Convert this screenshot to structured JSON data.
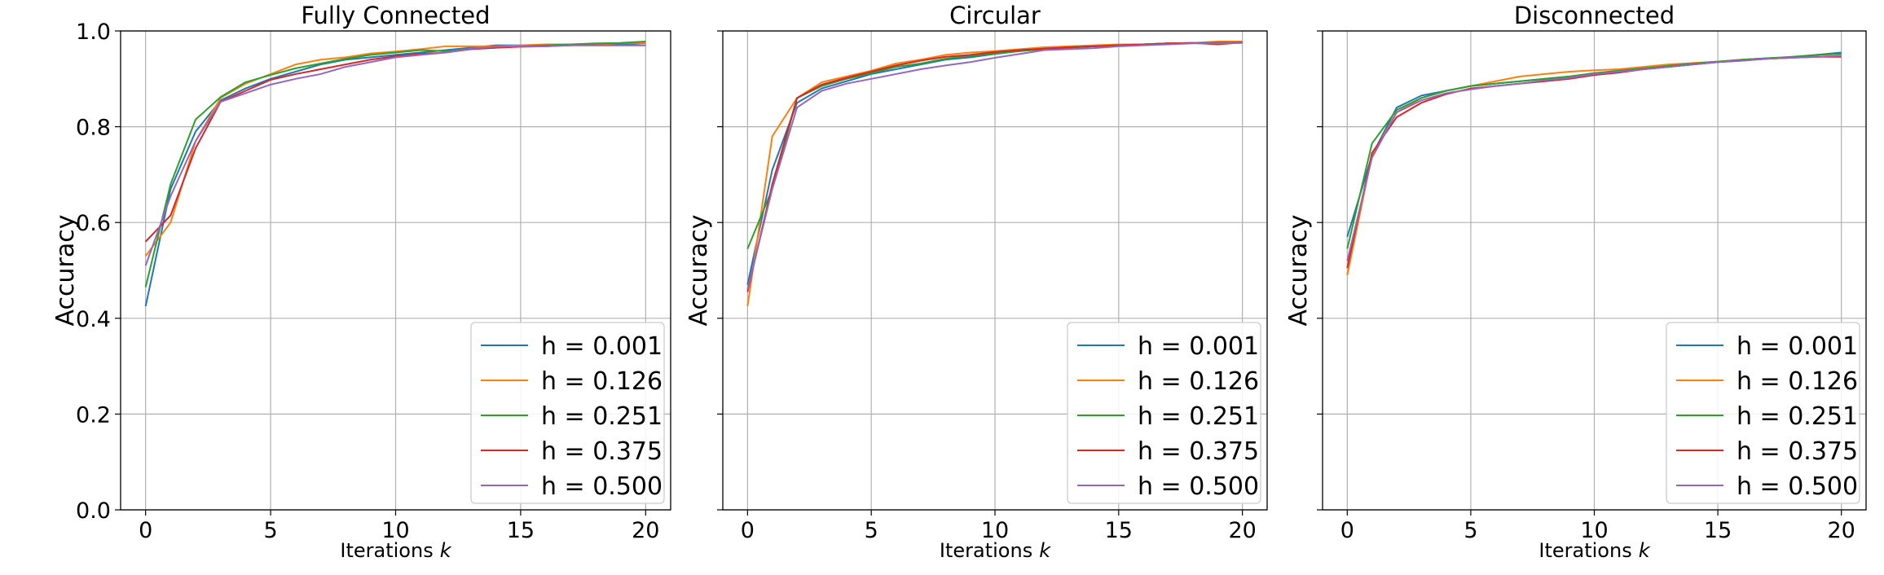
{
  "chart_data": [
    {
      "type": "line",
      "title": "Fully Connected",
      "xlabel": "Iterations",
      "xlabel_var": "k",
      "ylabel": "Accuracy",
      "xlim": [
        -1,
        21
      ],
      "ylim": [
        0,
        1.0
      ],
      "xticks": [
        "0",
        "5",
        "10",
        "15",
        "20"
      ],
      "yticks": [
        "0.0",
        "0.2",
        "0.4",
        "0.6",
        "0.8",
        "1.0"
      ],
      "grid": true,
      "legend_position": "bottom-right",
      "x": [
        0,
        1,
        2,
        3,
        4,
        5,
        6,
        7,
        8,
        9,
        10,
        11,
        12,
        13,
        14,
        15,
        16,
        17,
        18,
        19,
        20
      ],
      "series": [
        {
          "name": "h = 0.001",
          "color": "#1f77b4",
          "values": [
            0.425,
            0.67,
            0.79,
            0.855,
            0.88,
            0.9,
            0.915,
            0.93,
            0.94,
            0.945,
            0.95,
            0.955,
            0.96,
            0.965,
            0.97,
            0.97,
            0.97,
            0.97,
            0.972,
            0.972,
            0.975
          ]
        },
        {
          "name": "h = 0.126",
          "color": "#ff7f0e",
          "values": [
            0.53,
            0.6,
            0.77,
            0.86,
            0.89,
            0.91,
            0.93,
            0.94,
            0.945,
            0.953,
            0.957,
            0.962,
            0.968,
            0.968,
            0.968,
            0.97,
            0.972,
            0.972,
            0.972,
            0.975,
            0.975
          ]
        },
        {
          "name": "h = 0.251",
          "color": "#2ca02c",
          "values": [
            0.465,
            0.68,
            0.815,
            0.862,
            0.893,
            0.908,
            0.922,
            0.932,
            0.942,
            0.95,
            0.955,
            0.96,
            0.958,
            0.962,
            0.965,
            0.968,
            0.97,
            0.972,
            0.974,
            0.975,
            0.978
          ]
        },
        {
          "name": "h = 0.375",
          "color": "#d62728",
          "values": [
            0.56,
            0.615,
            0.755,
            0.852,
            0.875,
            0.898,
            0.91,
            0.92,
            0.93,
            0.94,
            0.947,
            0.952,
            0.955,
            0.962,
            0.965,
            0.967,
            0.968,
            0.97,
            0.97,
            0.97,
            0.97
          ]
        },
        {
          "name": "h = 0.500",
          "color": "#9467bd",
          "values": [
            0.51,
            0.655,
            0.77,
            0.852,
            0.87,
            0.888,
            0.9,
            0.91,
            0.925,
            0.935,
            0.945,
            0.95,
            0.955,
            0.963,
            0.967,
            0.968,
            0.968,
            0.97,
            0.97,
            0.97,
            0.97
          ]
        }
      ]
    },
    {
      "type": "line",
      "title": "Circular",
      "xlabel": "Iterations",
      "xlabel_var": "k",
      "ylabel": "Accuracy",
      "xlim": [
        -1,
        21
      ],
      "ylim": [
        0,
        1.0
      ],
      "xticks": [
        "0",
        "5",
        "10",
        "15",
        "20"
      ],
      "yticks": [],
      "grid": true,
      "legend_position": "bottom-right",
      "x": [
        0,
        1,
        2,
        3,
        4,
        5,
        6,
        7,
        8,
        9,
        10,
        11,
        12,
        13,
        14,
        15,
        16,
        17,
        18,
        19,
        20
      ],
      "series": [
        {
          "name": "h = 0.001",
          "color": "#1f77b4",
          "values": [
            0.47,
            0.71,
            0.85,
            0.88,
            0.895,
            0.91,
            0.92,
            0.93,
            0.94,
            0.945,
            0.952,
            0.958,
            0.962,
            0.965,
            0.968,
            0.97,
            0.972,
            0.974,
            0.975,
            0.976,
            0.976
          ]
        },
        {
          "name": "h = 0.126",
          "color": "#ff7f0e",
          "values": [
            0.425,
            0.78,
            0.86,
            0.893,
            0.905,
            0.917,
            0.932,
            0.94,
            0.95,
            0.955,
            0.958,
            0.962,
            0.966,
            0.968,
            0.97,
            0.972,
            0.972,
            0.974,
            0.975,
            0.978,
            0.978
          ]
        },
        {
          "name": "h = 0.251",
          "color": "#2ca02c",
          "values": [
            0.545,
            0.67,
            0.86,
            0.885,
            0.9,
            0.912,
            0.925,
            0.932,
            0.942,
            0.948,
            0.953,
            0.958,
            0.962,
            0.966,
            0.968,
            0.97,
            0.972,
            0.974,
            0.975,
            0.976,
            0.976
          ]
        },
        {
          "name": "h = 0.375",
          "color": "#d62728",
          "values": [
            0.455,
            0.68,
            0.86,
            0.888,
            0.902,
            0.915,
            0.928,
            0.938,
            0.946,
            0.95,
            0.956,
            0.96,
            0.963,
            0.966,
            0.968,
            0.97,
            0.972,
            0.974,
            0.975,
            0.972,
            0.976
          ]
        },
        {
          "name": "h = 0.500",
          "color": "#9467bd",
          "values": [
            0.46,
            0.67,
            0.84,
            0.875,
            0.89,
            0.9,
            0.91,
            0.92,
            0.928,
            0.935,
            0.944,
            0.952,
            0.96,
            0.962,
            0.964,
            0.968,
            0.97,
            0.972,
            0.974,
            0.974,
            0.975
          ]
        }
      ]
    },
    {
      "type": "line",
      "title": "Disconnected",
      "xlabel": "Iterations",
      "xlabel_var": "k",
      "ylabel": "Accuracy",
      "xlim": [
        -1,
        21
      ],
      "ylim": [
        0,
        1.0
      ],
      "xticks": [
        "0",
        "5",
        "10",
        "15",
        "20"
      ],
      "yticks": [],
      "grid": true,
      "legend_position": "bottom-right",
      "x": [
        0,
        1,
        2,
        3,
        4,
        5,
        6,
        7,
        8,
        9,
        10,
        11,
        12,
        13,
        14,
        15,
        16,
        17,
        18,
        19,
        20
      ],
      "series": [
        {
          "name": "h = 0.001",
          "color": "#1f77b4",
          "values": [
            0.57,
            0.74,
            0.84,
            0.865,
            0.875,
            0.885,
            0.89,
            0.895,
            0.9,
            0.905,
            0.91,
            0.915,
            0.92,
            0.925,
            0.93,
            0.935,
            0.94,
            0.943,
            0.945,
            0.95,
            0.955
          ]
        },
        {
          "name": "h = 0.126",
          "color": "#ff7f0e",
          "values": [
            0.49,
            0.74,
            0.83,
            0.86,
            0.875,
            0.885,
            0.895,
            0.905,
            0.91,
            0.915,
            0.918,
            0.92,
            0.925,
            0.93,
            0.933,
            0.936,
            0.94,
            0.942,
            0.944,
            0.946,
            0.948
          ]
        },
        {
          "name": "h = 0.251",
          "color": "#2ca02c",
          "values": [
            0.545,
            0.765,
            0.835,
            0.86,
            0.875,
            0.885,
            0.89,
            0.895,
            0.9,
            0.905,
            0.912,
            0.917,
            0.922,
            0.927,
            0.932,
            0.936,
            0.94,
            0.943,
            0.946,
            0.95,
            0.952
          ]
        },
        {
          "name": "h = 0.375",
          "color": "#d62728",
          "values": [
            0.505,
            0.745,
            0.82,
            0.85,
            0.868,
            0.88,
            0.885,
            0.89,
            0.895,
            0.9,
            0.908,
            0.913,
            0.92,
            0.925,
            0.93,
            0.935,
            0.938,
            0.942,
            0.944,
            0.946,
            0.946
          ]
        },
        {
          "name": "h = 0.500",
          "color": "#9467bd",
          "values": [
            0.52,
            0.735,
            0.83,
            0.855,
            0.87,
            0.878,
            0.885,
            0.89,
            0.897,
            0.902,
            0.91,
            0.915,
            0.92,
            0.925,
            0.93,
            0.935,
            0.938,
            0.942,
            0.944,
            0.946,
            0.948
          ]
        }
      ]
    }
  ]
}
